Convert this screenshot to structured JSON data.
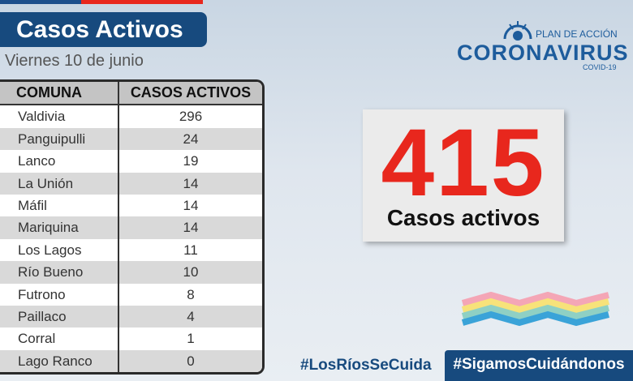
{
  "header": {
    "title": "Casos Activos",
    "date": "Viernes 10 de junio"
  },
  "logo": {
    "plan": "PLAN DE ACCIÓN",
    "name": "CORONAVIRUS",
    "sub": "COVID-19"
  },
  "table": {
    "columns": [
      "COMUNA",
      "CASOS ACTIVOS"
    ],
    "rows": [
      [
        "Valdivia",
        296
      ],
      [
        "Panguipulli",
        24
      ],
      [
        "Lanco",
        19
      ],
      [
        "La Unión",
        14
      ],
      [
        "Máfil",
        14
      ],
      [
        "Mariquina",
        14
      ],
      [
        "Los Lagos",
        11
      ],
      [
        "Río Bueno",
        10
      ],
      [
        "Futrono",
        8
      ],
      [
        "Paillaco",
        4
      ],
      [
        "Corral",
        1
      ],
      [
        "Lago Ranco",
        0
      ]
    ]
  },
  "total": {
    "value": 415,
    "label": "Casos activos"
  },
  "hashtags": [
    "#LosRíosSeCuida",
    "#SigamosCuidándonos"
  ]
}
